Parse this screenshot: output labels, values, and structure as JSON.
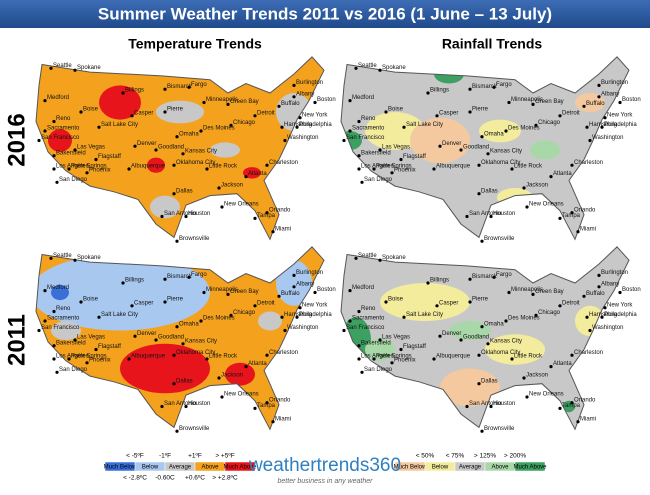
{
  "title": "Summer Weather Trends 2011 vs 2016 (1 June – 13 July)",
  "columns": [
    "Temperature Trends",
    "Rainfall Trends"
  ],
  "rows": [
    "2016",
    "2011"
  ],
  "cities": [
    "Seattle",
    "Spokane",
    "Medford",
    "Boise",
    "Reno",
    "Sacramento",
    "San Francisco",
    "Bakersfield",
    "Las Vegas",
    "Los Angeles",
    "Palm Springs",
    "San Diego",
    "Phoenix",
    "Flagstaff",
    "Salt Lake City",
    "Casper",
    "Billings",
    "Bismarck",
    "Pierre",
    "Fargo",
    "Minneapolis",
    "Green Bay",
    "Des Moines",
    "Omaha",
    "Denver",
    "Goodland",
    "Kansas City",
    "Chicago",
    "Detroit",
    "Buffalo",
    "Burlington",
    "Albany",
    "Boston",
    "New York",
    "Philadelphia",
    "Harrisburg",
    "Washington",
    "Charleston",
    "Atlanta",
    "Little Rock",
    "Oklahoma City",
    "Albuquerque",
    "Dallas",
    "San Antonio",
    "Houston",
    "New Orleans",
    "Jackson",
    "Orlando",
    "Tampa",
    "Miami",
    "Brownsville"
  ],
  "temperature_legend": {
    "top": [
      "< -5ºF",
      "-1ºF",
      "+1ºF",
      "> +5ºF"
    ],
    "bottom": [
      "< -2.8ºC",
      "-0.60C",
      "+0.6ºC",
      "> +2.8ºC"
    ],
    "items": [
      {
        "label": "Much Below",
        "color": "#3a6fd8"
      },
      {
        "label": "Below",
        "color": "#a9c8f0"
      },
      {
        "label": "Average",
        "color": "#c8c8c8"
      },
      {
        "label": "Above",
        "color": "#f4a21e"
      },
      {
        "label": "Much Above",
        "color": "#e8141b"
      }
    ]
  },
  "rainfall_legend": {
    "top": [
      "< 50%",
      "< 75%",
      "> 125%",
      "> 200%"
    ],
    "items": [
      {
        "label": "Much Below",
        "color": "#f4c9a0"
      },
      {
        "label": "Below",
        "color": "#f3ec9c"
      },
      {
        "label": "Average",
        "color": "#c8c8c8"
      },
      {
        "label": "Above",
        "color": "#a8d8a8"
      },
      {
        "label": "Much Above",
        "color": "#3ca060"
      }
    ]
  },
  "logo": {
    "name": "weathertrends360",
    "tagline": "better business in any weather"
  }
}
